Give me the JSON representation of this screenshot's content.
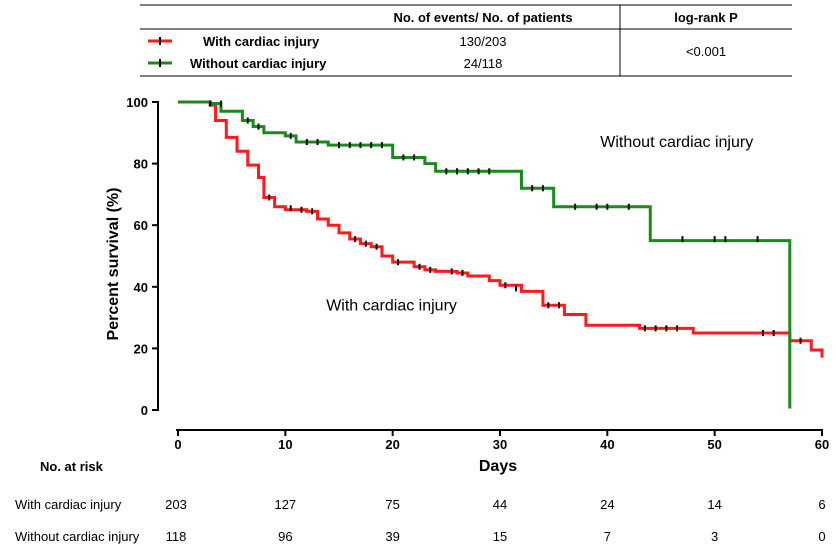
{
  "colors": {
    "with": "#ff1a1a",
    "without": "#1a8a1a",
    "axis": "#000000",
    "censor": "#000000"
  },
  "legend_table": {
    "header_events": "No. of events/ No. of patients",
    "header_p": "log-rank P",
    "rows": [
      {
        "label": "With cardiac injury",
        "events": "130/203"
      },
      {
        "label": "Without cardiac injury",
        "events": "24/118"
      }
    ],
    "p_value": "<0.001"
  },
  "risk_table": {
    "title": "No. at risk",
    "rows": [
      {
        "label": "With cardiac injury",
        "values": [
          "203",
          "127",
          "75",
          "44",
          "24",
          "14",
          "6"
        ]
      },
      {
        "label": "Without cardiac injury",
        "values": [
          "118",
          "96",
          "39",
          "15",
          "7",
          "3",
          "0"
        ]
      }
    ]
  },
  "chart_data": {
    "type": "line",
    "subtype": "kaplan-meier-step",
    "xlabel": "Days",
    "ylabel": "Percent survival (%)",
    "xlim": [
      0,
      60
    ],
    "ylim": [
      0,
      100
    ],
    "xticks": [
      0,
      10,
      20,
      30,
      40,
      50,
      60
    ],
    "yticks": [
      0,
      20,
      40,
      60,
      80,
      100
    ],
    "annotations": [
      {
        "text": "Without cardiac injury",
        "x": 44,
        "y": 87
      },
      {
        "text": "With cardiac injury",
        "x": 18,
        "y": 34
      }
    ],
    "series": [
      {
        "name": "With cardiac injury",
        "key": "with",
        "steps": [
          [
            0,
            100
          ],
          [
            3,
            99
          ],
          [
            3.5,
            94
          ],
          [
            4.5,
            88.5
          ],
          [
            5.5,
            84
          ],
          [
            6.5,
            79.5
          ],
          [
            7.5,
            75.5
          ],
          [
            8,
            69
          ],
          [
            9,
            66
          ],
          [
            10,
            65
          ],
          [
            12,
            64.5
          ],
          [
            13,
            62
          ],
          [
            14,
            60
          ],
          [
            15,
            57.5
          ],
          [
            16,
            55.5
          ],
          [
            17,
            54
          ],
          [
            18,
            53
          ],
          [
            19,
            50
          ],
          [
            20,
            48
          ],
          [
            22,
            46.5
          ],
          [
            23,
            45.5
          ],
          [
            24,
            45
          ],
          [
            26,
            44.5
          ],
          [
            27,
            43.5
          ],
          [
            29,
            42
          ],
          [
            30,
            40.5
          ],
          [
            32,
            38.5
          ],
          [
            34,
            34
          ],
          [
            36,
            31
          ],
          [
            38,
            27.5
          ],
          [
            43,
            26.5
          ],
          [
            48,
            25
          ],
          [
            57,
            22.5
          ],
          [
            59,
            19.5
          ],
          [
            60,
            17
          ]
        ],
        "censors": [
          [
            8.5,
            69
          ],
          [
            10.5,
            65.5
          ],
          [
            11.5,
            65
          ],
          [
            12.5,
            64.5
          ],
          [
            16.5,
            55.5
          ],
          [
            17.5,
            54
          ],
          [
            18.5,
            53
          ],
          [
            20.5,
            48
          ],
          [
            22.5,
            46.5
          ],
          [
            23.5,
            45.5
          ],
          [
            25.5,
            45
          ],
          [
            26.5,
            44.5
          ],
          [
            30.5,
            40.5
          ],
          [
            31.5,
            39.5
          ],
          [
            34.5,
            34
          ],
          [
            35.5,
            34
          ],
          [
            43.5,
            26.5
          ],
          [
            44.5,
            26.5
          ],
          [
            45.5,
            26.5
          ],
          [
            46.5,
            26.5
          ],
          [
            54.5,
            25
          ],
          [
            55.5,
            25
          ],
          [
            58,
            22.5
          ]
        ]
      },
      {
        "name": "Without cardiac injury",
        "key": "without",
        "steps": [
          [
            0,
            100
          ],
          [
            3,
            99.5
          ],
          [
            4,
            97
          ],
          [
            6,
            94
          ],
          [
            7,
            92
          ],
          [
            8,
            90
          ],
          [
            10,
            89
          ],
          [
            11,
            87
          ],
          [
            14,
            86
          ],
          [
            20,
            82
          ],
          [
            23,
            80
          ],
          [
            24,
            77.5
          ],
          [
            32,
            72
          ],
          [
            35,
            66
          ],
          [
            44,
            55
          ],
          [
            57,
            0.5
          ]
        ],
        "censors": [
          [
            3,
            99.5
          ],
          [
            4,
            99.5
          ],
          [
            6.5,
            94
          ],
          [
            7.5,
            92
          ],
          [
            10.5,
            89
          ],
          [
            12,
            87
          ],
          [
            13,
            87
          ],
          [
            15,
            86
          ],
          [
            16,
            86
          ],
          [
            17,
            86
          ],
          [
            18,
            86
          ],
          [
            19,
            86
          ],
          [
            21,
            82
          ],
          [
            22,
            82
          ],
          [
            25,
            77.5
          ],
          [
            26,
            77.5
          ],
          [
            27,
            77.5
          ],
          [
            28,
            77.5
          ],
          [
            29,
            77.5
          ],
          [
            33,
            72
          ],
          [
            34,
            72
          ],
          [
            37,
            66
          ],
          [
            39,
            66
          ],
          [
            40,
            66
          ],
          [
            42,
            66
          ],
          [
            47,
            55.5
          ],
          [
            50,
            55.5
          ],
          [
            51,
            55.5
          ],
          [
            54,
            55.5
          ]
        ]
      }
    ]
  }
}
